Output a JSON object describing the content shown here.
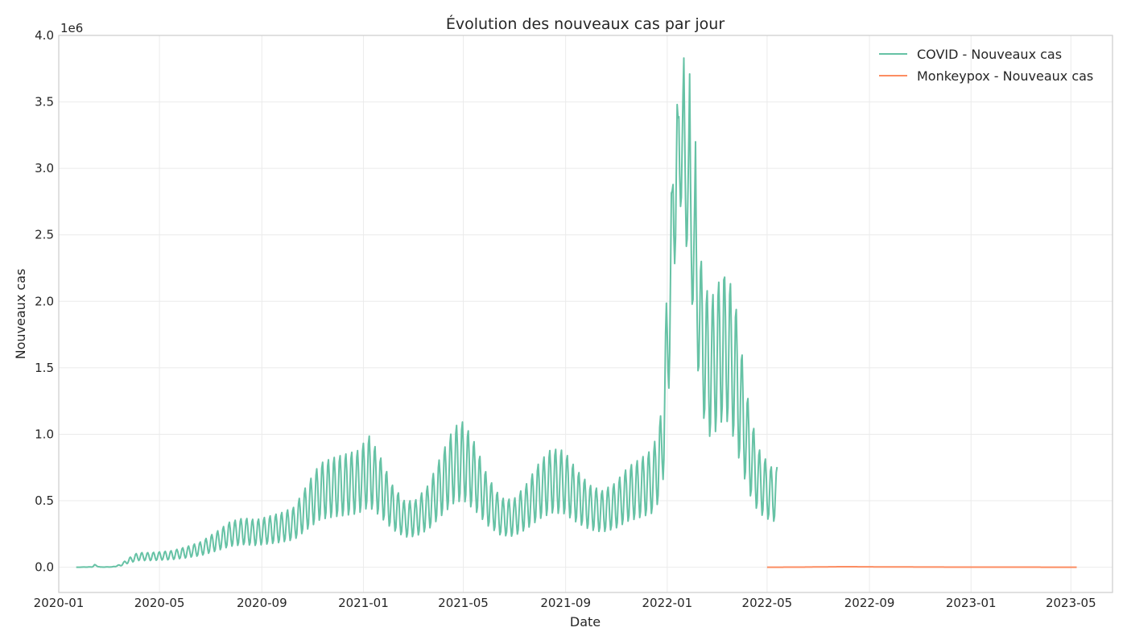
{
  "chart_data": {
    "type": "line",
    "title": "Évolution des nouveaux cas par jour",
    "xlabel": "Date",
    "ylabel": "Nouveaux cas",
    "y_offset_label": "1e6",
    "x_range": [
      "2020-01-01",
      "2023-06-20"
    ],
    "ylim": [
      -0.19,
      4.0
    ],
    "y_unit_multiplier": 1000000,
    "x_ticks": [
      "2020-01",
      "2020-05",
      "2020-09",
      "2021-01",
      "2021-05",
      "2021-09",
      "2022-01",
      "2022-05",
      "2022-09",
      "2023-01",
      "2023-05"
    ],
    "y_ticks": [
      "0.0",
      "0.5",
      "1.0",
      "1.5",
      "2.0",
      "2.5",
      "3.0",
      "3.5",
      "4.0"
    ],
    "grid": true,
    "legend_position": "top-right",
    "colors": {
      "covid": "#66c2a5",
      "monkeypox": "#fc8d62"
    },
    "series": [
      {
        "name": "COVID - Nouveaux cas",
        "color": "#66c2a5",
        "weekly_oscillation": true,
        "points": [
          [
            "2020-01-22",
            0.0
          ],
          [
            "2020-02-10",
            0.002
          ],
          [
            "2020-02-13",
            0.015
          ],
          [
            "2020-02-20",
            0.001
          ],
          [
            "2020-03-05",
            0.002
          ],
          [
            "2020-03-15",
            0.015
          ],
          [
            "2020-03-25",
            0.05
          ],
          [
            "2020-04-05",
            0.08
          ],
          [
            "2020-04-20",
            0.08
          ],
          [
            "2020-05-15",
            0.09
          ],
          [
            "2020-06-01",
            0.11
          ],
          [
            "2020-06-20",
            0.14
          ],
          [
            "2020-07-10",
            0.2
          ],
          [
            "2020-07-25",
            0.25
          ],
          [
            "2020-08-10",
            0.27
          ],
          [
            "2020-08-25",
            0.26
          ],
          [
            "2020-09-10",
            0.28
          ],
          [
            "2020-09-25",
            0.3
          ],
          [
            "2020-10-10",
            0.33
          ],
          [
            "2020-10-25",
            0.45
          ],
          [
            "2020-11-10",
            0.57
          ],
          [
            "2020-11-25",
            0.6
          ],
          [
            "2020-12-10",
            0.62
          ],
          [
            "2020-12-25",
            0.64
          ],
          [
            "2021-01-08",
            0.72
          ],
          [
            "2021-01-20",
            0.62
          ],
          [
            "2021-02-05",
            0.45
          ],
          [
            "2021-02-20",
            0.36
          ],
          [
            "2021-03-05",
            0.37
          ],
          [
            "2021-03-20",
            0.45
          ],
          [
            "2021-04-05",
            0.62
          ],
          [
            "2021-04-20",
            0.77
          ],
          [
            "2021-05-01",
            0.8
          ],
          [
            "2021-05-15",
            0.68
          ],
          [
            "2021-05-30",
            0.5
          ],
          [
            "2021-06-15",
            0.38
          ],
          [
            "2021-06-30",
            0.37
          ],
          [
            "2021-07-15",
            0.45
          ],
          [
            "2021-08-01",
            0.58
          ],
          [
            "2021-08-15",
            0.65
          ],
          [
            "2021-08-30",
            0.64
          ],
          [
            "2021-09-15",
            0.53
          ],
          [
            "2021-09-30",
            0.45
          ],
          [
            "2021-10-15",
            0.42
          ],
          [
            "2021-10-30",
            0.46
          ],
          [
            "2021-11-15",
            0.55
          ],
          [
            "2021-12-01",
            0.6
          ],
          [
            "2021-12-15",
            0.65
          ],
          [
            "2021-12-25",
            0.85
          ],
          [
            "2022-01-01",
            1.55
          ],
          [
            "2022-01-07",
            2.55
          ],
          [
            "2022-01-12",
            3.0
          ],
          [
            "2022-01-17",
            3.25
          ],
          [
            "2022-01-21",
            3.1
          ],
          [
            "2022-01-27",
            2.8
          ],
          [
            "2022-02-03",
            2.3
          ],
          [
            "2022-02-10",
            1.8
          ],
          [
            "2022-02-17",
            1.55
          ],
          [
            "2022-02-24",
            1.5
          ],
          [
            "2022-03-03",
            1.6
          ],
          [
            "2022-03-10",
            1.65
          ],
          [
            "2022-03-17",
            1.62
          ],
          [
            "2022-03-24",
            1.45
          ],
          [
            "2022-03-31",
            1.2
          ],
          [
            "2022-04-07",
            0.95
          ],
          [
            "2022-04-14",
            0.78
          ],
          [
            "2022-04-21",
            0.65
          ],
          [
            "2022-04-28",
            0.6
          ],
          [
            "2022-05-06",
            0.55
          ],
          [
            "2022-05-13",
            0.55
          ]
        ],
        "peaks": [
          [
            "2022-01-07",
            2.83
          ],
          [
            "2022-01-14",
            3.38
          ],
          [
            "2022-01-21",
            3.83
          ],
          [
            "2022-01-28",
            3.71
          ],
          [
            "2022-02-04",
            3.2
          ],
          [
            "2022-03-10",
            2.16
          ]
        ]
      },
      {
        "name": "Monkeypox - Nouveaux cas",
        "color": "#fc8d62",
        "weekly_oscillation": false,
        "points": [
          [
            "2022-05-01",
            0.0
          ],
          [
            "2022-06-15",
            0.001
          ],
          [
            "2022-08-01",
            0.004
          ],
          [
            "2022-09-01",
            0.003
          ],
          [
            "2022-10-01",
            0.002
          ],
          [
            "2022-12-01",
            0.001
          ],
          [
            "2023-03-01",
            0.0005
          ],
          [
            "2023-05-08",
            0.0003
          ]
        ]
      }
    ]
  }
}
